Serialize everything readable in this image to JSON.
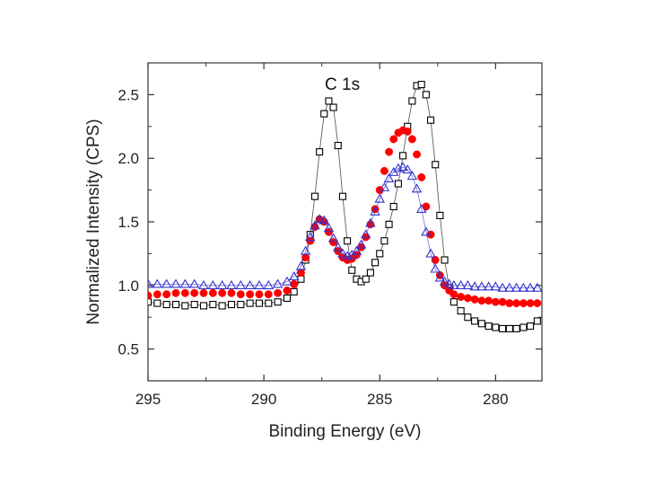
{
  "chart_data": {
    "type": "scatter",
    "title": "",
    "annotation": "C 1s",
    "xlabel": "Binding Energy (eV)",
    "ylabel": "Normalized Intensity (CPS)",
    "xlim": [
      295,
      278
    ],
    "ylim": [
      0.25,
      2.75
    ],
    "x_reversed": true,
    "x_ticks": [
      295,
      290,
      285,
      280
    ],
    "x_tick_labels": [
      "295",
      "290",
      "285",
      "280"
    ],
    "y_ticks": [
      0.5,
      1.0,
      1.5,
      2.0,
      2.5
    ],
    "y_tick_labels": [
      "0.5",
      "1.0",
      "1.5",
      "2.0",
      "2.5"
    ],
    "grid": false,
    "legend": "none",
    "series": [
      {
        "marker": "open-square",
        "color": "#000000",
        "connected": true,
        "points": [
          [
            295.0,
            0.87
          ],
          [
            294.6,
            0.86
          ],
          [
            294.2,
            0.85
          ],
          [
            293.8,
            0.85
          ],
          [
            293.4,
            0.84
          ],
          [
            293.0,
            0.85
          ],
          [
            292.6,
            0.84
          ],
          [
            292.2,
            0.85
          ],
          [
            291.8,
            0.84
          ],
          [
            291.4,
            0.85
          ],
          [
            291.0,
            0.85
          ],
          [
            290.6,
            0.86
          ],
          [
            290.2,
            0.86
          ],
          [
            289.8,
            0.86
          ],
          [
            289.4,
            0.87
          ],
          [
            289.0,
            0.9
          ],
          [
            288.7,
            0.95
          ],
          [
            288.4,
            1.05
          ],
          [
            288.2,
            1.2
          ],
          [
            288.0,
            1.4
          ],
          [
            287.8,
            1.7
          ],
          [
            287.6,
            2.05
          ],
          [
            287.4,
            2.35
          ],
          [
            287.2,
            2.45
          ],
          [
            287.0,
            2.4
          ],
          [
            286.8,
            2.1
          ],
          [
            286.6,
            1.7
          ],
          [
            286.4,
            1.35
          ],
          [
            286.2,
            1.12
          ],
          [
            286.0,
            1.05
          ],
          [
            285.8,
            1.03
          ],
          [
            285.6,
            1.05
          ],
          [
            285.4,
            1.1
          ],
          [
            285.2,
            1.18
          ],
          [
            285.0,
            1.25
          ],
          [
            284.8,
            1.35
          ],
          [
            284.6,
            1.48
          ],
          [
            284.4,
            1.62
          ],
          [
            284.2,
            1.8
          ],
          [
            284.0,
            2.02
          ],
          [
            283.8,
            2.25
          ],
          [
            283.6,
            2.45
          ],
          [
            283.4,
            2.57
          ],
          [
            283.2,
            2.58
          ],
          [
            283.0,
            2.5
          ],
          [
            282.8,
            2.3
          ],
          [
            282.6,
            1.95
          ],
          [
            282.4,
            1.55
          ],
          [
            282.2,
            1.2
          ],
          [
            282.0,
            0.98
          ],
          [
            281.8,
            0.87
          ],
          [
            281.5,
            0.8
          ],
          [
            281.2,
            0.75
          ],
          [
            280.9,
            0.72
          ],
          [
            280.6,
            0.7
          ],
          [
            280.3,
            0.68
          ],
          [
            280.0,
            0.67
          ],
          [
            279.7,
            0.66
          ],
          [
            279.4,
            0.66
          ],
          [
            279.1,
            0.66
          ],
          [
            278.8,
            0.67
          ],
          [
            278.5,
            0.68
          ],
          [
            278.2,
            0.72
          ]
        ]
      },
      {
        "marker": "filled-circle",
        "color": "#ff0000",
        "connected": false,
        "points": [
          [
            295.0,
            0.92
          ],
          [
            294.6,
            0.93
          ],
          [
            294.2,
            0.93
          ],
          [
            293.8,
            0.94
          ],
          [
            293.4,
            0.94
          ],
          [
            293.0,
            0.94
          ],
          [
            292.6,
            0.94
          ],
          [
            292.2,
            0.94
          ],
          [
            291.8,
            0.94
          ],
          [
            291.4,
            0.94
          ],
          [
            291.0,
            0.93
          ],
          [
            290.6,
            0.93
          ],
          [
            290.2,
            0.93
          ],
          [
            289.8,
            0.93
          ],
          [
            289.4,
            0.94
          ],
          [
            289.0,
            0.96
          ],
          [
            288.7,
            1.01
          ],
          [
            288.4,
            1.1
          ],
          [
            288.2,
            1.22
          ],
          [
            288.0,
            1.35
          ],
          [
            287.8,
            1.46
          ],
          [
            287.6,
            1.52
          ],
          [
            287.4,
            1.5
          ],
          [
            287.2,
            1.42
          ],
          [
            287.0,
            1.34
          ],
          [
            286.8,
            1.27
          ],
          [
            286.6,
            1.22
          ],
          [
            286.4,
            1.2
          ],
          [
            286.2,
            1.21
          ],
          [
            286.0,
            1.24
          ],
          [
            285.8,
            1.3
          ],
          [
            285.6,
            1.38
          ],
          [
            285.4,
            1.48
          ],
          [
            285.2,
            1.6
          ],
          [
            285.0,
            1.75
          ],
          [
            284.8,
            1.9
          ],
          [
            284.6,
            2.05
          ],
          [
            284.4,
            2.15
          ],
          [
            284.2,
            2.2
          ],
          [
            284.0,
            2.22
          ],
          [
            283.8,
            2.21
          ],
          [
            283.6,
            2.15
          ],
          [
            283.4,
            2.03
          ],
          [
            283.2,
            1.85
          ],
          [
            283.0,
            1.62
          ],
          [
            282.8,
            1.4
          ],
          [
            282.6,
            1.2
          ],
          [
            282.4,
            1.08
          ],
          [
            282.2,
            1.0
          ],
          [
            282.0,
            0.96
          ],
          [
            281.8,
            0.93
          ],
          [
            281.5,
            0.91
          ],
          [
            281.2,
            0.9
          ],
          [
            280.9,
            0.89
          ],
          [
            280.6,
            0.88
          ],
          [
            280.3,
            0.88
          ],
          [
            280.0,
            0.87
          ],
          [
            279.7,
            0.87
          ],
          [
            279.4,
            0.86
          ],
          [
            279.1,
            0.86
          ],
          [
            278.8,
            0.86
          ],
          [
            278.5,
            0.86
          ],
          [
            278.2,
            0.86
          ]
        ]
      },
      {
        "marker": "open-triangle",
        "color": "#3333cc",
        "connected": true,
        "points": [
          [
            295.0,
            1.01
          ],
          [
            294.6,
            1.01
          ],
          [
            294.2,
            1.01
          ],
          [
            293.8,
            1.01
          ],
          [
            293.4,
            1.01
          ],
          [
            293.0,
            1.01
          ],
          [
            292.6,
            1.0
          ],
          [
            292.2,
            1.0
          ],
          [
            291.8,
            1.0
          ],
          [
            291.4,
            1.0
          ],
          [
            291.0,
            1.0
          ],
          [
            290.6,
            1.0
          ],
          [
            290.2,
            1.0
          ],
          [
            289.8,
            1.0
          ],
          [
            289.4,
            1.01
          ],
          [
            289.0,
            1.03
          ],
          [
            288.7,
            1.07
          ],
          [
            288.4,
            1.15
          ],
          [
            288.2,
            1.27
          ],
          [
            288.0,
            1.38
          ],
          [
            287.8,
            1.47
          ],
          [
            287.6,
            1.52
          ],
          [
            287.4,
            1.51
          ],
          [
            287.2,
            1.45
          ],
          [
            287.0,
            1.37
          ],
          [
            286.8,
            1.3
          ],
          [
            286.6,
            1.25
          ],
          [
            286.4,
            1.23
          ],
          [
            286.2,
            1.24
          ],
          [
            286.0,
            1.27
          ],
          [
            285.8,
            1.32
          ],
          [
            285.6,
            1.4
          ],
          [
            285.4,
            1.49
          ],
          [
            285.2,
            1.58
          ],
          [
            285.0,
            1.68
          ],
          [
            284.8,
            1.77
          ],
          [
            284.6,
            1.84
          ],
          [
            284.4,
            1.89
          ],
          [
            284.2,
            1.92
          ],
          [
            284.0,
            1.93
          ],
          [
            283.8,
            1.91
          ],
          [
            283.6,
            1.86
          ],
          [
            283.4,
            1.76
          ],
          [
            283.2,
            1.6
          ],
          [
            283.0,
            1.42
          ],
          [
            282.8,
            1.25
          ],
          [
            282.6,
            1.13
          ],
          [
            282.4,
            1.06
          ],
          [
            282.2,
            1.03
          ],
          [
            282.0,
            1.01
          ],
          [
            281.8,
            1.0
          ],
          [
            281.5,
            1.0
          ],
          [
            281.2,
            1.0
          ],
          [
            280.9,
            0.99
          ],
          [
            280.6,
            0.99
          ],
          [
            280.3,
            0.99
          ],
          [
            280.0,
            0.99
          ],
          [
            279.7,
            0.98
          ],
          [
            279.4,
            0.98
          ],
          [
            279.1,
            0.98
          ],
          [
            278.8,
            0.98
          ],
          [
            278.5,
            0.98
          ],
          [
            278.2,
            0.98
          ]
        ]
      }
    ]
  }
}
